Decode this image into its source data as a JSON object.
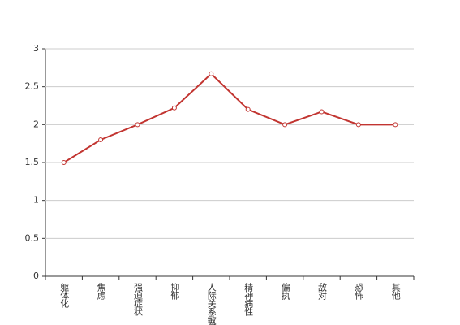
{
  "chart_data": {
    "type": "line",
    "categories": [
      "躯体化",
      "焦虑",
      "强迫症状",
      "抑郁",
      "人际关系敏感",
      "精神病性",
      "偏执",
      "敌对",
      "恐怖",
      "其他"
    ],
    "values": [
      1.5,
      1.8,
      2.0,
      2.22,
      2.67,
      2.2,
      2.0,
      2.17,
      2.0,
      2.0
    ],
    "color": "#c23531",
    "ylim": [
      0,
      3
    ],
    "yticks": [
      0,
      0.5,
      1,
      1.5,
      2,
      2.5,
      3
    ],
    "grid": true
  }
}
